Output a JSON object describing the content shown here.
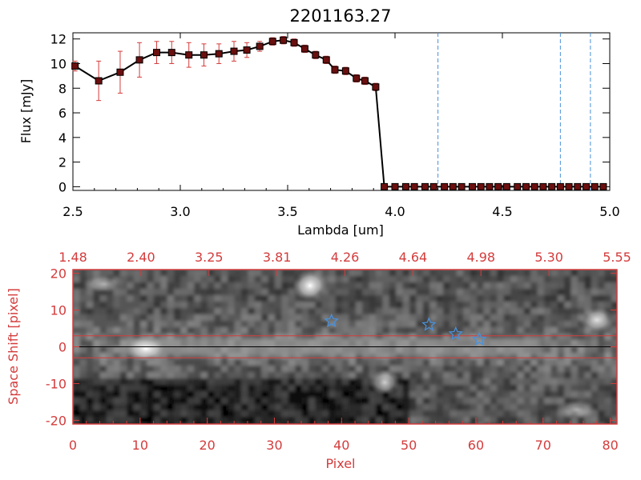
{
  "colors": {
    "red": "#d43c3c",
    "black": "#000000",
    "blue": "#4a90d9"
  },
  "chart_data": [
    {
      "type": "line",
      "title": "2201163.27",
      "xlabel": "Lambda [um]",
      "ylabel": "Flux [mJy]",
      "xlim": [
        2.5,
        5.0
      ],
      "ylim": [
        -0.3,
        12.5
      ],
      "xticks": [
        "2.5",
        "3.0",
        "3.5",
        "4.0",
        "4.5",
        "5.0"
      ],
      "yticks": [
        "0",
        "2",
        "4",
        "6",
        "8",
        "10",
        "12"
      ],
      "series": [
        {
          "x": [
            2.51,
            2.62,
            2.72,
            2.81,
            2.89,
            2.96,
            3.04,
            3.11,
            3.18,
            3.25,
            3.31,
            3.37,
            3.43,
            3.48,
            3.53,
            3.58,
            3.63,
            3.68,
            3.72,
            3.77,
            3.82,
            3.86,
            3.91,
            3.95,
            4.0,
            4.05,
            4.09,
            4.14,
            4.18,
            4.23,
            4.27,
            4.31,
            4.36,
            4.4,
            4.44,
            4.48,
            4.52,
            4.57,
            4.61,
            4.65,
            4.69,
            4.73,
            4.77,
            4.81,
            4.85,
            4.89,
            4.93,
            4.97
          ],
          "y": [
            9.8,
            8.6,
            9.3,
            10.3,
            10.9,
            10.9,
            10.7,
            10.7,
            10.8,
            11.0,
            11.1,
            11.4,
            11.8,
            11.9,
            11.7,
            11.2,
            10.7,
            10.3,
            9.5,
            9.4,
            8.8,
            8.6,
            8.1,
            0,
            0,
            0,
            0,
            0,
            0,
            0,
            0,
            0,
            0,
            0,
            0,
            0,
            0,
            0,
            0,
            0,
            0,
            0,
            0,
            0,
            0,
            0,
            0,
            0
          ],
          "yerr": [
            0.4,
            1.6,
            1.7,
            1.4,
            0.9,
            0.9,
            1.0,
            0.9,
            0.8,
            0.8,
            0.6,
            0.4,
            0.3,
            0.3,
            0.3,
            0.3,
            0.3,
            0.3,
            0.3,
            0.3,
            0.3,
            0.3,
            0.3,
            0,
            0,
            0,
            0,
            0,
            0,
            0,
            0,
            0,
            0,
            0,
            0,
            0,
            0,
            0,
            0,
            0,
            0,
            0,
            0,
            0,
            0,
            0,
            0,
            0
          ]
        }
      ],
      "vlines": [
        4.2,
        4.77,
        4.91
      ]
    },
    {
      "type": "heatmap",
      "xlabel": "Pixel",
      "ylabel": "Space Shift [pixel]",
      "xlim": [
        0,
        81
      ],
      "ylim": [
        -21,
        21
      ],
      "xticks": [
        "0",
        "10",
        "20",
        "30",
        "40",
        "50",
        "60",
        "70",
        "80"
      ],
      "yticks": [
        "-20",
        "-10",
        "0",
        "10",
        "20"
      ],
      "top_xticks": [
        "1.48",
        "2.40",
        "3.25",
        "3.81",
        "4.26",
        "4.64",
        "4.98",
        "5.30",
        "5.55"
      ],
      "hlines": [
        3,
        0,
        -3
      ],
      "stars": [
        {
          "x": 38.5,
          "y": 7
        },
        {
          "x": 53,
          "y": 6
        },
        {
          "x": 57,
          "y": 3.5
        },
        {
          "x": 60.5,
          "y": 2
        }
      ]
    }
  ]
}
